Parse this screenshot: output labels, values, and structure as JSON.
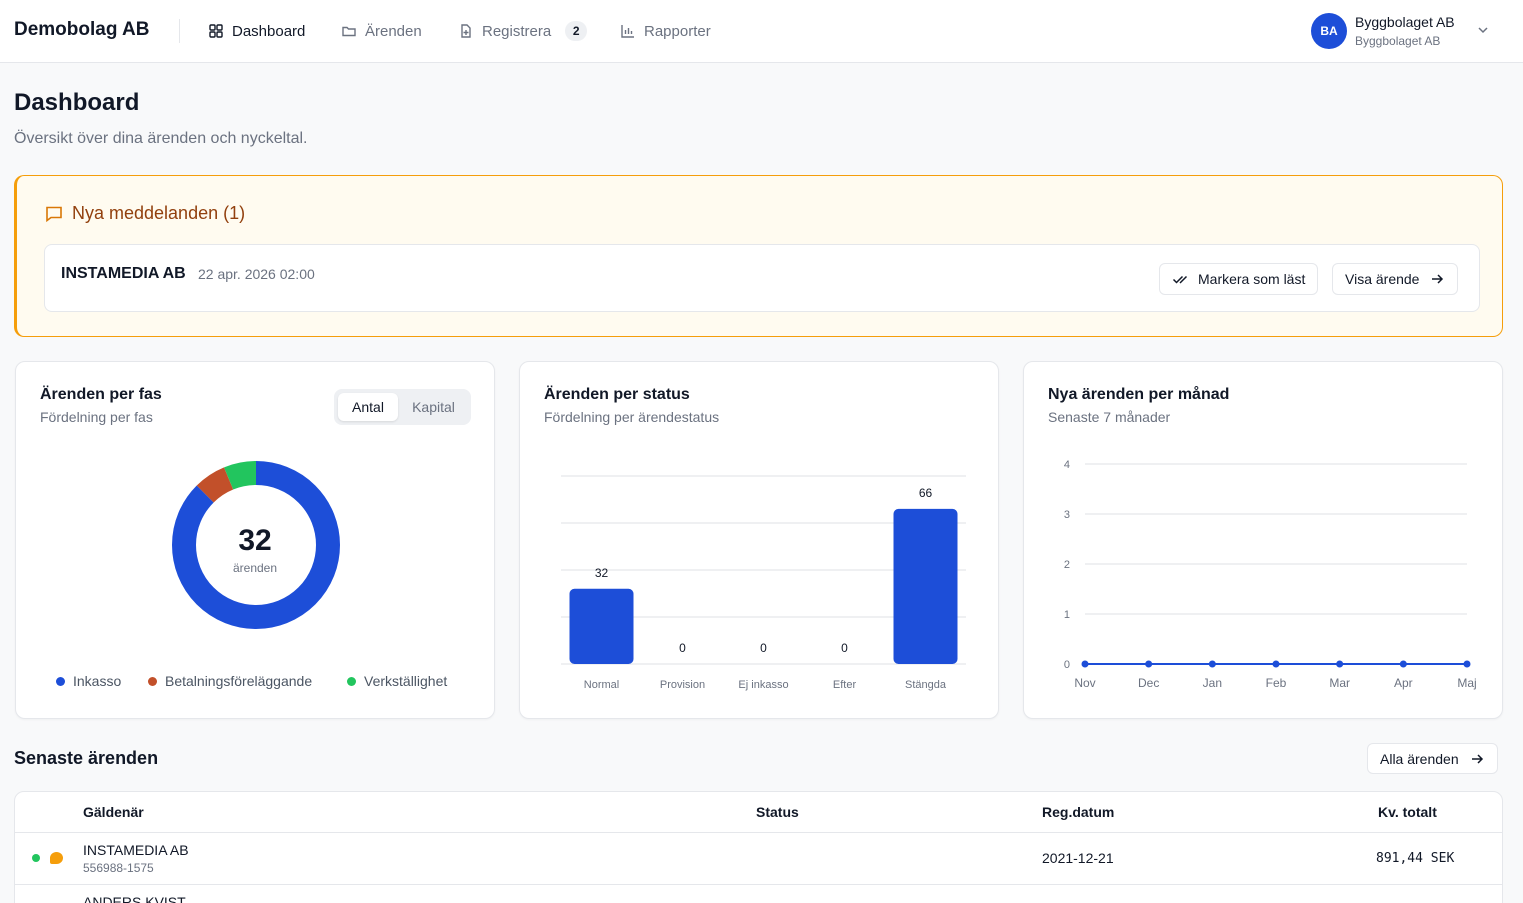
{
  "header": {
    "brand": "Demobolag AB",
    "nav": [
      {
        "label": "Dashboard",
        "icon": "dashboard-grid-icon",
        "active": true
      },
      {
        "label": "Ärenden",
        "icon": "folder-icon",
        "active": false
      },
      {
        "label": "Registrera",
        "icon": "file-plus-icon",
        "active": false,
        "badge": "2"
      },
      {
        "label": "Rapporter",
        "icon": "bar-chart-icon",
        "active": false
      }
    ],
    "user": {
      "initials": "BA",
      "name": "Byggbolaget AB",
      "org": "Byggbolaget AB"
    }
  },
  "page": {
    "title": "Dashboard",
    "subtitle": "Översikt över dina ärenden och nyckeltal."
  },
  "messages": {
    "heading": "Nya meddelanden (1)",
    "items": [
      {
        "sender": "INSTAMEDIA AB",
        "date": "22 apr. 2026 02:00",
        "mark_read": "Markera som läst",
        "view": "Visa ärende"
      }
    ]
  },
  "cards": {
    "phase": {
      "title": "Ärenden per fas",
      "subtitle": "Fördelning per fas",
      "toggle": [
        "Antal",
        "Kapital"
      ],
      "toggle_selected": "Antal",
      "total": "32",
      "total_label": "ärenden"
    },
    "status": {
      "title": "Ärenden per status",
      "subtitle": "Fördelning per ärendestatus"
    },
    "monthly": {
      "title": "Nya ärenden per månad",
      "subtitle": "Senaste 7 månader"
    }
  },
  "chart_data": [
    {
      "type": "pie",
      "categories": [
        "Inkasso",
        "Betalningsföreläggande",
        "Verkställighet"
      ],
      "values": [
        28,
        2,
        2
      ],
      "colors": [
        "#1d4ed8",
        "#c2502a",
        "#22c55e"
      ],
      "legend": "bottom"
    },
    {
      "type": "bar",
      "categories": [
        "Normal",
        "Provision",
        "Ej inkasso",
        "Efter",
        "Stängda"
      ],
      "values": [
        32,
        0,
        0,
        0,
        66
      ],
      "ylim": [
        0,
        80
      ],
      "color": "#1d4ed8",
      "grid": true
    },
    {
      "type": "line",
      "categories": [
        "Nov",
        "Dec",
        "Jan",
        "Feb",
        "Mar",
        "Apr",
        "Maj"
      ],
      "values": [
        0,
        0,
        0,
        0,
        0,
        0,
        0
      ],
      "yticks": [
        "0",
        "1",
        "2",
        "3",
        "4"
      ],
      "ylim": [
        0,
        4
      ],
      "color": "#1d4ed8",
      "grid": true
    }
  ],
  "recent": {
    "title": "Senaste ärenden",
    "all_button": "Alla ärenden",
    "columns": [
      "Gäldenär",
      "Status",
      "Reg.datum",
      "Kv. totalt"
    ],
    "rows": [
      {
        "name": "INSTAMEDIA AB",
        "orgnr": "556988-1575",
        "status": "",
        "date": "2021-12-21",
        "total": "891,44 SEK"
      },
      {
        "name": "ANDERS KVIST",
        "orgnr": "",
        "status": "",
        "date": "",
        "total": ""
      }
    ]
  }
}
